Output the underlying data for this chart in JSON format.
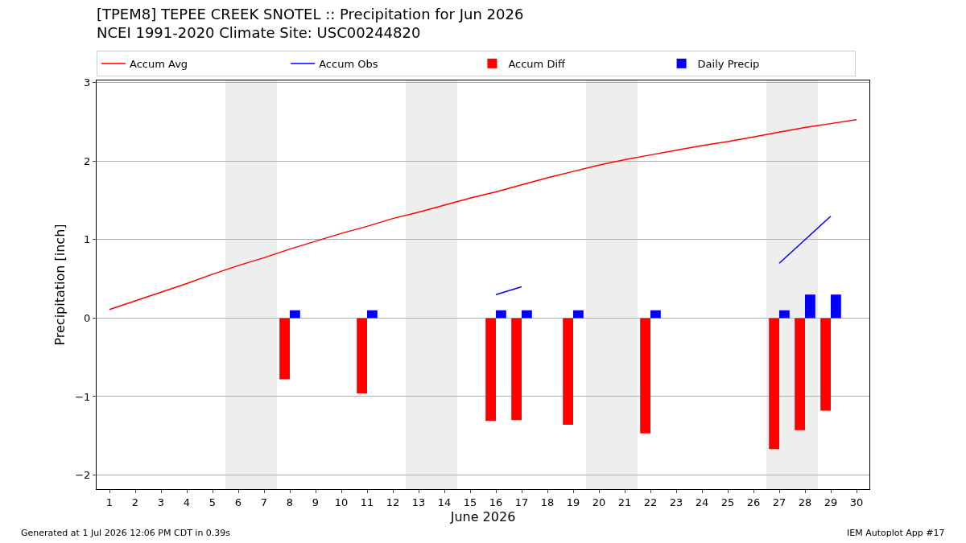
{
  "chart_data": {
    "type": "bar",
    "title": "[TPEM8] TEPEE CREEK SNOTEL :: Precipitation for Jun 2026",
    "subtitle": "NCEI 1991-2020 Climate Site: USC00244820",
    "xlabel": "June 2026",
    "ylabel": "Precipitation [inch]",
    "x": [
      1,
      2,
      3,
      4,
      5,
      6,
      7,
      8,
      9,
      10,
      11,
      12,
      13,
      14,
      15,
      16,
      17,
      18,
      19,
      20,
      21,
      22,
      23,
      24,
      25,
      26,
      27,
      28,
      29,
      30
    ],
    "series": [
      {
        "name": "Accum Avg",
        "type": "line",
        "color": "#ff0000",
        "values": [
          0.11,
          0.22,
          0.33,
          0.44,
          0.56,
          0.67,
          0.77,
          0.88,
          0.98,
          1.08,
          1.17,
          1.27,
          1.35,
          1.44,
          1.53,
          1.61,
          1.7,
          1.79,
          1.87,
          1.95,
          2.02,
          2.08,
          2.14,
          2.2,
          2.25,
          2.31,
          2.37,
          2.43,
          2.48,
          2.53
        ]
      },
      {
        "name": "Accum Obs",
        "type": "line",
        "color": "#0000ff",
        "values": [
          null,
          null,
          null,
          null,
          null,
          null,
          null,
          null,
          null,
          null,
          null,
          null,
          null,
          null,
          null,
          0.3,
          0.4,
          null,
          null,
          null,
          null,
          null,
          null,
          null,
          null,
          null,
          0.7,
          1.0,
          1.3,
          null
        ]
      },
      {
        "name": "Accum Diff",
        "color": "#ff0000",
        "values": [
          null,
          null,
          null,
          null,
          null,
          null,
          null,
          -0.78,
          null,
          null,
          -0.96,
          null,
          null,
          null,
          null,
          -1.31,
          -1.3,
          null,
          -1.36,
          null,
          null,
          -1.47,
          null,
          null,
          null,
          null,
          -1.67,
          -1.43,
          -1.18,
          null
        ]
      },
      {
        "name": "Daily Precip",
        "color": "#0000ff",
        "values": [
          null,
          null,
          null,
          null,
          null,
          null,
          null,
          0.1,
          null,
          null,
          0.1,
          null,
          null,
          null,
          null,
          0.1,
          0.1,
          null,
          0.1,
          null,
          null,
          0.1,
          null,
          null,
          null,
          null,
          0.1,
          0.3,
          0.3,
          null
        ]
      }
    ],
    "bands": [
      {
        "axis": "x",
        "from": 5.5,
        "to": 7.5,
        "color": "#eeeeee"
      },
      {
        "axis": "x",
        "from": 12.5,
        "to": 14.5,
        "color": "#eeeeee"
      },
      {
        "axis": "x",
        "from": 19.5,
        "to": 21.5,
        "color": "#eeeeee"
      },
      {
        "axis": "x",
        "from": 26.5,
        "to": 28.5,
        "color": "#eeeeee"
      }
    ],
    "xlim": [
      0.5,
      30.5
    ],
    "xticks": [
      1,
      2,
      3,
      4,
      5,
      6,
      7,
      8,
      9,
      10,
      11,
      12,
      13,
      14,
      15,
      16,
      17,
      18,
      19,
      20,
      21,
      22,
      23,
      24,
      25,
      26,
      27,
      28,
      29,
      30
    ],
    "ylim": [
      -2.18,
      3.03
    ],
    "yticks": [
      {
        "value": -2,
        "label": "−2"
      },
      {
        "value": -1,
        "label": "−1"
      },
      0,
      1,
      2,
      3
    ],
    "grid": "y",
    "legend": "top",
    "annotations": [
      "Generated at 1 Jul 2026 12:06 PM CDT in 0.39s",
      "IEM Autoplot App #17"
    ]
  }
}
